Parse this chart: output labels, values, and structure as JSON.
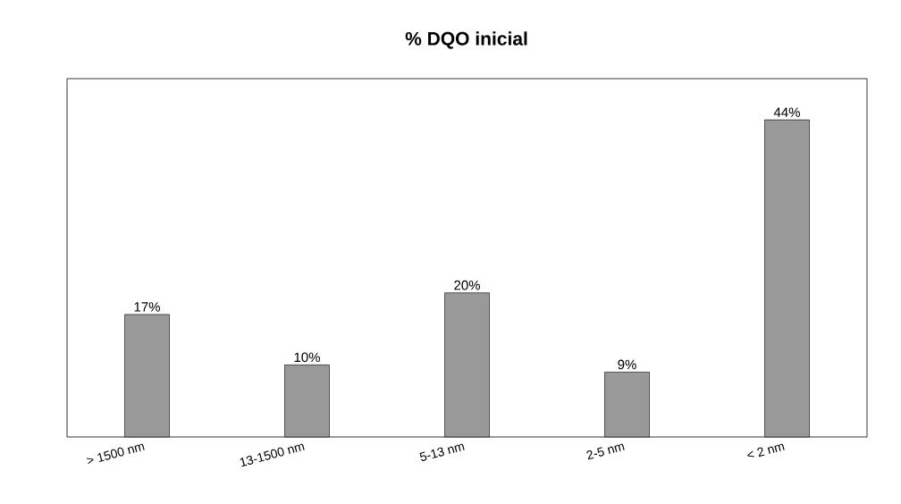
{
  "chart_data": {
    "type": "bar",
    "title": "% DQO inicial",
    "categories": [
      "> 1500 nm",
      "13-1500 nm",
      "5-13 nm",
      "2-5 nm",
      "< 2 nm"
    ],
    "values": [
      17,
      10,
      20,
      9,
      44
    ],
    "value_labels": [
      "17%",
      "10%",
      "20%",
      "9%",
      "44%"
    ],
    "color": "#999999",
    "grid": false,
    "tick_labels": "x"
  }
}
